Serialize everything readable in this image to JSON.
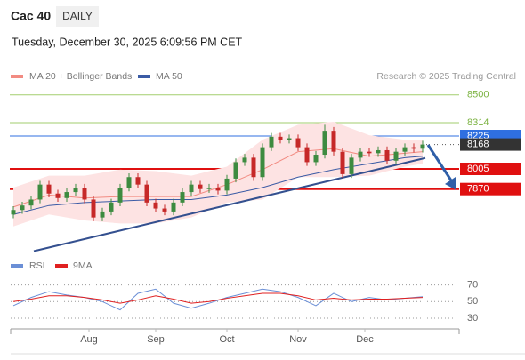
{
  "header": {
    "symbol": "Cac 40",
    "period": "DAILY",
    "datetime": "Tuesday, December 30, 2025 6:09:56 PM CET",
    "credit": "Research © 2025 Trading Central"
  },
  "chart_data": {
    "type": "candlestick",
    "ylim": [
      7440,
      8570
    ],
    "xlim": [
      -1,
      50
    ],
    "xticks": [
      {
        "value": 8.5,
        "label": "Aug"
      },
      {
        "value": 16,
        "label": "Sep"
      },
      {
        "value": 24,
        "label": "Oct"
      },
      {
        "value": 32,
        "label": "Nov"
      },
      {
        "value": 39.5,
        "label": "Dec"
      }
    ],
    "up_color": "#3d8b40",
    "down_color": "#c62828",
    "open": [
      7700,
      7730,
      7760,
      7800,
      7900,
      7840,
      7810,
      7850,
      7880,
      7800,
      7680,
      7720,
      7780,
      7880,
      7950,
      7900,
      7780,
      7740,
      7720,
      7780,
      7850,
      7900,
      7870,
      7880,
      7860,
      7940,
      8050,
      8080,
      7950,
      8150,
      8220,
      8200,
      8210,
      8150,
      8050,
      8100,
      8260,
      8120,
      7970,
      8080,
      8120,
      8110,
      8130,
      8060,
      8120,
      8150,
      8140
    ],
    "high": [
      7755,
      7785,
      7825,
      7925,
      7925,
      7865,
      7875,
      7905,
      7905,
      7825,
      7745,
      7805,
      7905,
      7975,
      7975,
      7925,
      7805,
      7765,
      7805,
      7875,
      7925,
      7925,
      7905,
      7905,
      7965,
      8075,
      8105,
      8105,
      8175,
      8245,
      8245,
      8235,
      8235,
      8175,
      8125,
      8300,
      8285,
      8145,
      8105,
      8145,
      8145,
      8155,
      8155,
      8145,
      8175,
      8175,
      8193
    ],
    "low": [
      7675,
      7705,
      7735,
      7775,
      7815,
      7785,
      7785,
      7825,
      7775,
      7655,
      7655,
      7695,
      7755,
      7855,
      7875,
      7755,
      7715,
      7695,
      7695,
      7755,
      7825,
      7845,
      7845,
      7835,
      7835,
      7915,
      8025,
      7925,
      7925,
      8125,
      8175,
      8175,
      8125,
      8025,
      8025,
      8075,
      8095,
      7945,
      7945,
      8055,
      8085,
      8085,
      8035,
      8035,
      8095,
      8115,
      8115
    ],
    "close": [
      7730,
      7760,
      7800,
      7900,
      7840,
      7810,
      7850,
      7880,
      7800,
      7680,
      7720,
      7780,
      7880,
      7950,
      7900,
      7780,
      7740,
      7720,
      7780,
      7850,
      7900,
      7870,
      7880,
      7860,
      7940,
      8050,
      8080,
      7950,
      8150,
      8220,
      8200,
      8210,
      8150,
      8050,
      8100,
      8260,
      8120,
      7970,
      8080,
      8120,
      8110,
      8130,
      8060,
      8120,
      8150,
      8140,
      8168
    ],
    "bands": {
      "name": "MA 20 + Bollinger Bands",
      "color": "#f28b82",
      "fill": "#fde3e3",
      "x": [
        0,
        4,
        8,
        12,
        16,
        20,
        24,
        28,
        32,
        36,
        40,
        44,
        46
      ],
      "upper": [
        7880,
        7960,
        7960,
        8000,
        7990,
        7960,
        8020,
        8200,
        8300,
        8320,
        8230,
        8200,
        8200
      ],
      "lower": [
        7620,
        7700,
        7660,
        7640,
        7640,
        7680,
        7780,
        7800,
        7950,
        7950,
        7960,
        8020,
        8040
      ],
      "ma20": [
        7750,
        7830,
        7810,
        7820,
        7820,
        7820,
        7900,
        8000,
        8120,
        8140,
        8090,
        8110,
        8120
      ]
    },
    "ma50": {
      "name": "MA 50",
      "color": "#3b5ba5",
      "x": [
        0,
        4,
        8,
        12,
        16,
        20,
        24,
        28,
        32,
        36,
        40,
        44,
        46
      ],
      "values": [
        7700,
        7760,
        7780,
        7790,
        7800,
        7800,
        7830,
        7880,
        7950,
        8000,
        8040,
        8080,
        8090
      ]
    },
    "trendline": {
      "color": "#34508f",
      "x": [
        2.3,
        46.3
      ],
      "values": [
        7455,
        8078
      ]
    },
    "levels": [
      {
        "value": 8500,
        "color": "#8bc34a",
        "kind": "text"
      },
      {
        "value": 8314,
        "color": "#8bc34a",
        "kind": "text"
      },
      {
        "value": 8225,
        "color": "#2f6fe0",
        "kind": "box"
      },
      {
        "value": 8168,
        "color": "#333333",
        "kind": "current"
      },
      {
        "value": 8005,
        "color": "#e01010",
        "kind": "box"
      },
      {
        "value": 7870,
        "color": "#e01010",
        "kind": "box"
      }
    ],
    "rsi": {
      "ylim": [
        15,
        76
      ],
      "yticks": [
        70,
        50,
        30
      ],
      "x": [
        0,
        2,
        4,
        6,
        8,
        10,
        12,
        14,
        16,
        18,
        20,
        22,
        24,
        26,
        28,
        30,
        32,
        34,
        36,
        38,
        40,
        42,
        44,
        46
      ],
      "series": [
        {
          "name": "RSI",
          "color": "#6b8fd6",
          "values": [
            45,
            55,
            62,
            58,
            55,
            50,
            40,
            60,
            65,
            48,
            42,
            48,
            55,
            60,
            65,
            62,
            55,
            45,
            60,
            50,
            55,
            52,
            54,
            56
          ]
        },
        {
          "name": "9MA",
          "color": "#e02020",
          "values": [
            50,
            53,
            57,
            57,
            55,
            52,
            48,
            52,
            57,
            53,
            48,
            50,
            54,
            57,
            60,
            60,
            57,
            52,
            54,
            52,
            53,
            53,
            54,
            55
          ]
        }
      ]
    }
  }
}
